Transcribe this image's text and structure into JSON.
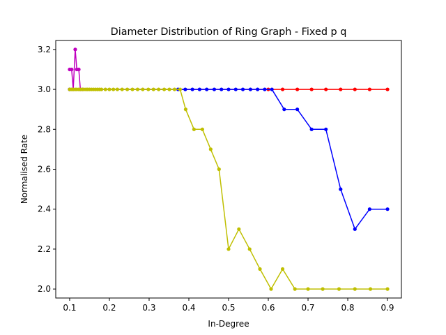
{
  "chart_data": {
    "type": "line",
    "title": "Diameter Distribution of Ring Graph - Fixed p q",
    "xlabel": "In-Degree",
    "ylabel": "Normalised Rate",
    "xlim": [
      0.065,
      0.935
    ],
    "ylim": [
      1.955,
      3.245
    ],
    "xticks": [
      0.1,
      0.2,
      0.3,
      0.4,
      0.5,
      0.6,
      0.7,
      0.8,
      0.9
    ],
    "xtick_labels": [
      "0.1",
      "0.2",
      "0.3",
      "0.4",
      "0.5",
      "0.6",
      "0.7",
      "0.8",
      "0.9"
    ],
    "yticks": [
      2.0,
      2.2,
      2.4,
      2.6,
      2.8,
      3.0,
      3.2
    ],
    "ytick_labels": [
      "2.0",
      "2.2",
      "2.4",
      "2.6",
      "2.8",
      "3.0",
      "3.2"
    ],
    "grid": false,
    "legend": "none",
    "series": [
      {
        "color": "#ff0000",
        "x": [
          0.1,
          0.6,
          0.636,
          0.673,
          0.709,
          0.745,
          0.782,
          0.818,
          0.855,
          0.9
        ],
        "y": [
          3.0,
          3.0,
          3.0,
          3.0,
          3.0,
          3.0,
          3.0,
          3.0,
          3.0,
          3.0
        ]
      },
      {
        "color": "#0000ff",
        "x": [
          0.1,
          0.373,
          0.391,
          0.409,
          0.427,
          0.445,
          0.464,
          0.482,
          0.5,
          0.518,
          0.536,
          0.555,
          0.573,
          0.591,
          0.609,
          0.64,
          0.673,
          0.709,
          0.745,
          0.782,
          0.818,
          0.855,
          0.9
        ],
        "y": [
          3.0,
          3.0,
          3.0,
          3.0,
          3.0,
          3.0,
          3.0,
          3.0,
          3.0,
          3.0,
          3.0,
          3.0,
          3.0,
          3.0,
          3.0,
          2.9,
          2.9,
          2.8,
          2.8,
          2.5,
          2.3,
          2.4,
          2.4
        ]
      },
      {
        "color": "#bf00bf",
        "x": [
          0.1,
          0.105,
          0.109,
          0.114,
          0.118,
          0.123,
          0.127,
          0.132
        ],
        "y": [
          3.1,
          3.1,
          3.0,
          3.2,
          3.1,
          3.1,
          3.0,
          3.0
        ]
      },
      {
        "color": "#bfbf00",
        "x": [
          0.1,
          0.105,
          0.109,
          0.114,
          0.118,
          0.123,
          0.127,
          0.132,
          0.136,
          0.141,
          0.145,
          0.15,
          0.155,
          0.16,
          0.165,
          0.17,
          0.175,
          0.18,
          0.19,
          0.2,
          0.21,
          0.22,
          0.232,
          0.245,
          0.258,
          0.271,
          0.284,
          0.298,
          0.311,
          0.324,
          0.338,
          0.351,
          0.364,
          0.378,
          0.392,
          0.413,
          0.434,
          0.455,
          0.476,
          0.5,
          0.526,
          0.553,
          0.579,
          0.607,
          0.636,
          0.667,
          0.7,
          0.737,
          0.778,
          0.818,
          0.857,
          0.9
        ],
        "y": [
          3.0,
          3.0,
          3.0,
          3.0,
          3.0,
          3.0,
          3.0,
          3.0,
          3.0,
          3.0,
          3.0,
          3.0,
          3.0,
          3.0,
          3.0,
          3.0,
          3.0,
          3.0,
          3.0,
          3.0,
          3.0,
          3.0,
          3.0,
          3.0,
          3.0,
          3.0,
          3.0,
          3.0,
          3.0,
          3.0,
          3.0,
          3.0,
          3.0,
          3.0,
          2.9,
          2.8,
          2.8,
          2.7,
          2.6,
          2.2,
          2.3,
          2.2,
          2.1,
          2.0,
          2.1,
          2.0,
          2.0,
          2.0,
          2.0,
          2.0,
          2.0,
          2.0
        ]
      }
    ]
  }
}
